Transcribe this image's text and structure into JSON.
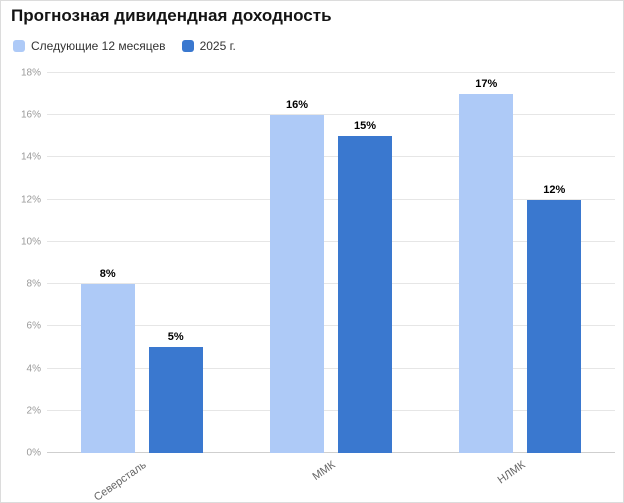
{
  "title": "Прогнозная дивидендная доходность",
  "colors": {
    "series_light": "#aecaf7",
    "series_dark": "#3a78cf",
    "gridline": "#e6e6e6",
    "axis_text": "#999999",
    "background": "#ffffff"
  },
  "chart_data": {
    "type": "bar",
    "title": "Прогнозная дивидендная доходность",
    "categories": [
      "Северсталь",
      "ММК",
      "НЛМК"
    ],
    "series": [
      {
        "name": "Следующие 12 месяцев",
        "color": "#aecaf7",
        "values": [
          8,
          16,
          17
        ]
      },
      {
        "name": "2025 г.",
        "color": "#3a78cf",
        "values": [
          5,
          15,
          12
        ]
      }
    ],
    "data_labels": [
      [
        "8%",
        "16%",
        "17%"
      ],
      [
        "5%",
        "15%",
        "12%"
      ]
    ],
    "xlabel": "",
    "ylabel": "",
    "ylim": [
      0,
      18
    ],
    "ytick_step": 2,
    "ytick_suffix": "%",
    "data_label_suffix": "%",
    "yticks": [
      "0%",
      "2%",
      "4%",
      "6%",
      "8%",
      "10%",
      "12%",
      "14%",
      "16%",
      "18%"
    ],
    "grid": true,
    "legend_position": "top-left"
  }
}
